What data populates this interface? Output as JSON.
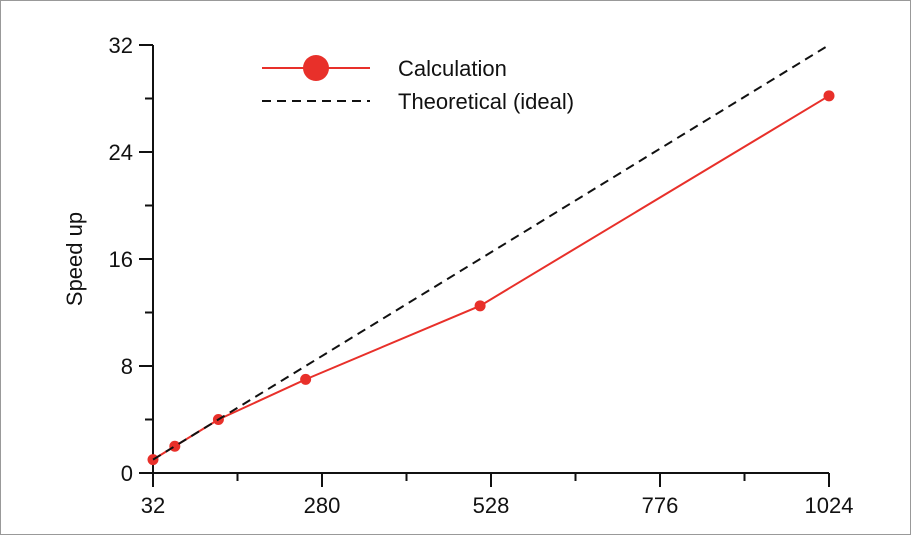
{
  "chart_data": {
    "type": "line",
    "title": "",
    "xlabel": "",
    "ylabel": "Speed up",
    "xlim": [
      32,
      1024
    ],
    "ylim": [
      0,
      32
    ],
    "x_ticks": [
      32,
      280,
      528,
      776,
      1024
    ],
    "y_ticks": [
      0,
      8,
      16,
      24,
      32
    ],
    "grid": false,
    "legend_position": "top-left",
    "series": [
      {
        "name": "Calculation",
        "style": "solid-with-markers",
        "color": "#e8302a",
        "x": [
          32,
          64,
          128,
          256,
          512,
          1024
        ],
        "y": [
          1.0,
          2.0,
          4.0,
          7.0,
          12.5,
          28.2
        ]
      },
      {
        "name": "Theoretical (ideal)",
        "style": "dashed",
        "color": "#111111",
        "x": [
          32,
          1024
        ],
        "y": [
          1,
          32
        ]
      }
    ]
  },
  "colors": {
    "frame": "#999999",
    "axis": "#111111"
  }
}
